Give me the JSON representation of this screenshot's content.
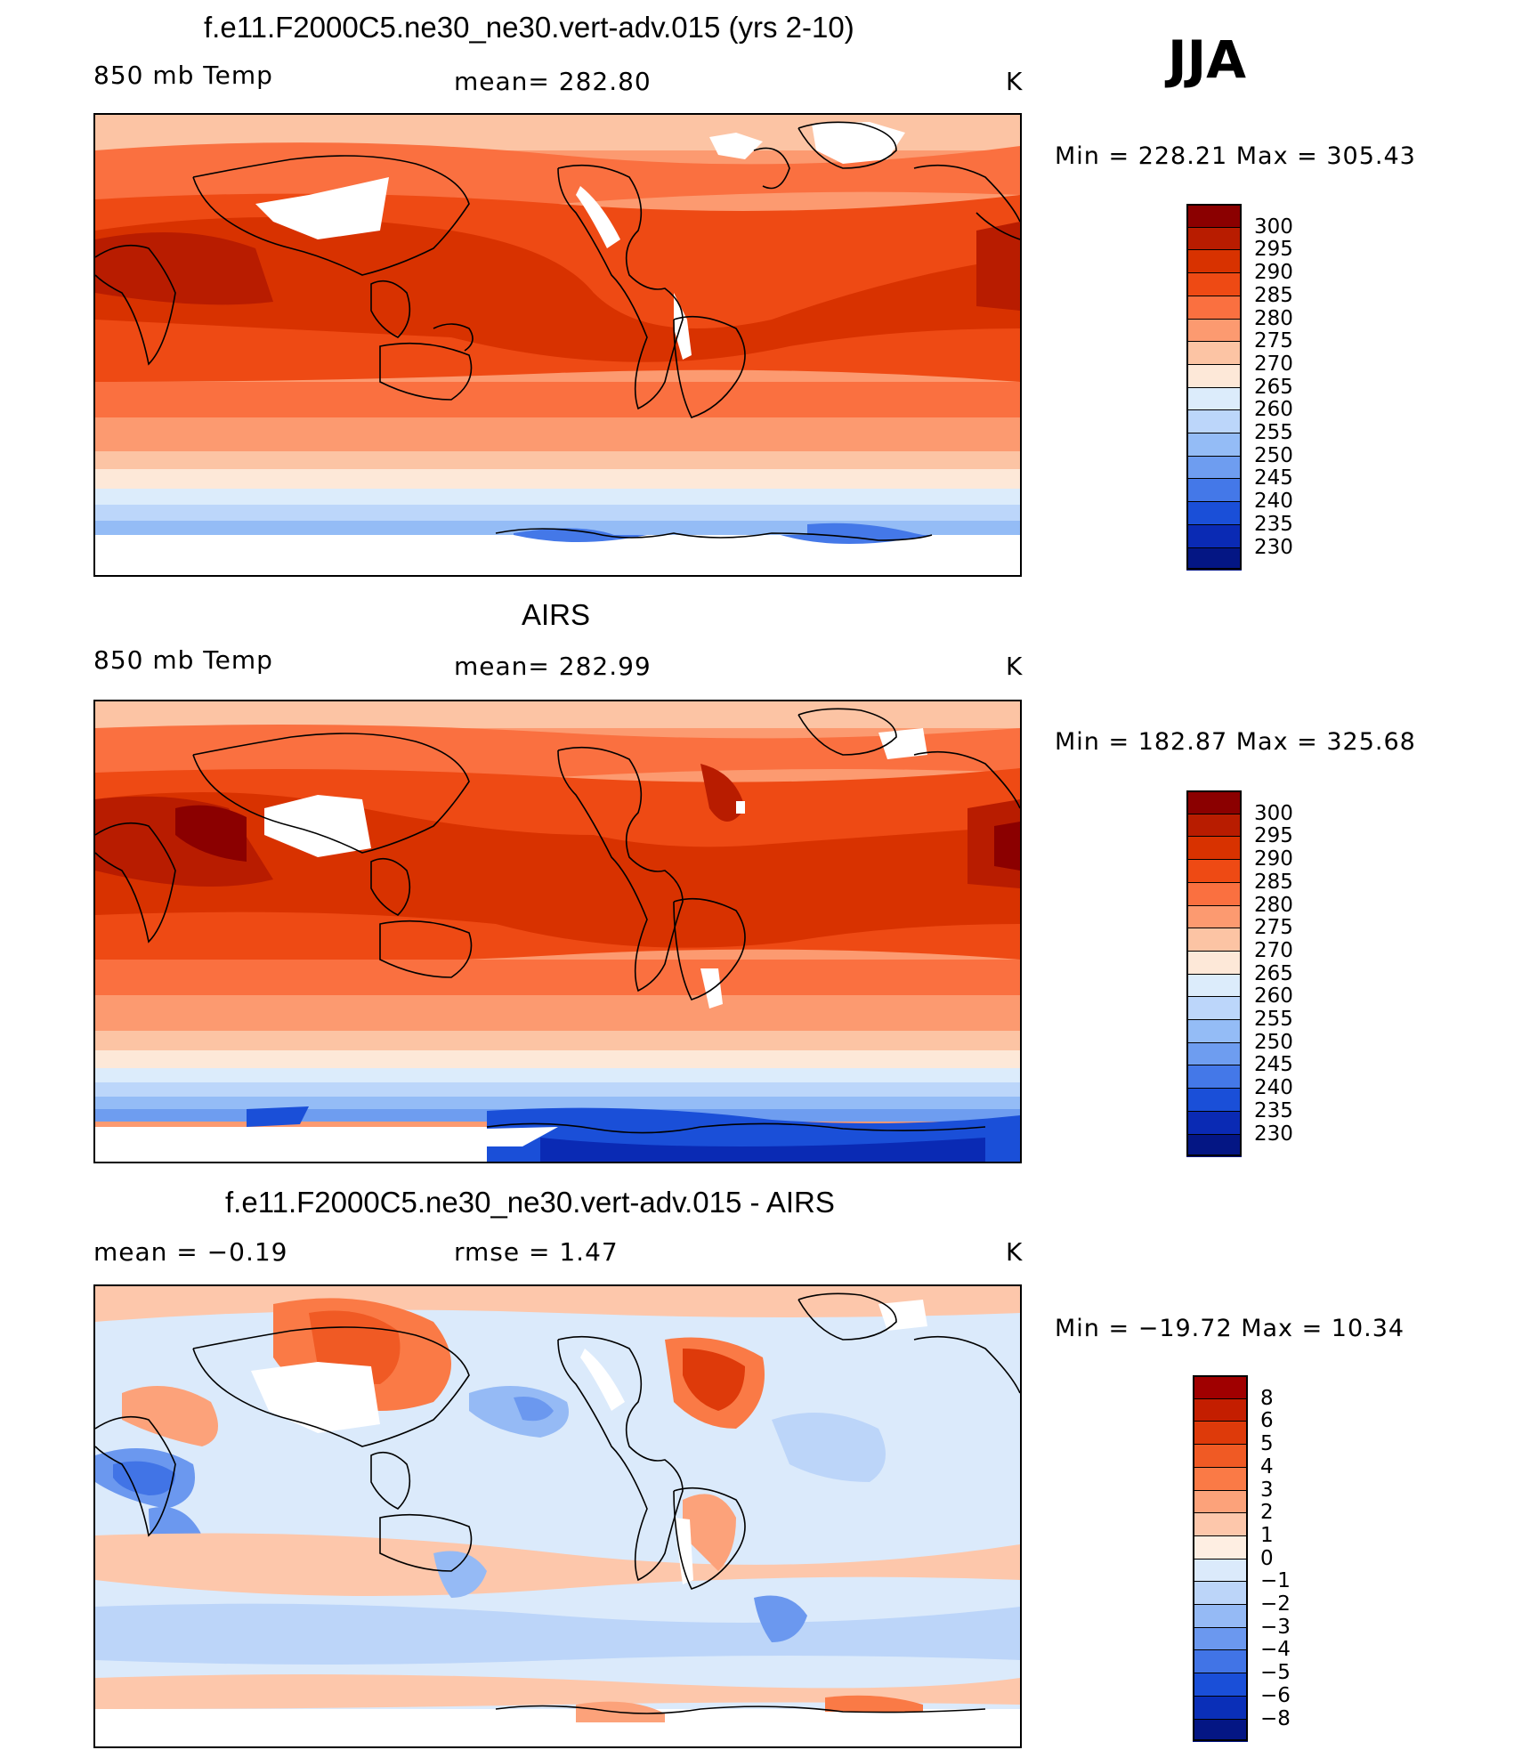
{
  "season": "JJA",
  "panels": [
    {
      "title": "f.e11.F2000C5.ne30_ne30.vert-adv.015 (yrs 2-10)",
      "left_label": "850 mb Temp",
      "center_label": "mean=  282.80",
      "units": "K",
      "minmax": "Min  =  228.21  Max  =  305.43"
    },
    {
      "title": "AIRS",
      "left_label": "850 mb Temp",
      "center_label": "mean=  282.99",
      "units": "K",
      "minmax": "Min  =  182.87  Max  =  325.68"
    },
    {
      "title": "f.e11.F2000C5.ne30_ne30.vert-adv.015 - AIRS",
      "left_label": "mean  =     −0.19",
      "center_label": "rmse  =     1.47",
      "units": "K",
      "minmax": "Min  =  −19.72  Max  =    10.34"
    }
  ],
  "colorbars": {
    "temperature": {
      "levels": [
        "300",
        "295",
        "290",
        "285",
        "280",
        "275",
        "270",
        "265",
        "260",
        "255",
        "250",
        "245",
        "240",
        "235",
        "230"
      ],
      "colors": [
        "#8b0000",
        "#b81c00",
        "#d83200",
        "#ee4a14",
        "#fa7040",
        "#fc9a70",
        "#fcc4a4",
        "#fde8d8",
        "#dcecfb",
        "#bcd6fa",
        "#94bcf6",
        "#6e9df0",
        "#4478e8",
        "#1a4fd8",
        "#0a2ab4",
        "#041684"
      ]
    },
    "difference": {
      "levels": [
        "8",
        "6",
        "5",
        "4",
        "3",
        "2",
        "1",
        "0",
        "−1",
        "−2",
        "−3",
        "−4",
        "−5",
        "−6",
        "−8"
      ],
      "colors": [
        "#a00000",
        "#c41e00",
        "#de3a0a",
        "#f05a24",
        "#fa7a46",
        "#fca27a",
        "#fdc7ab",
        "#feeee2",
        "#dbeafb",
        "#bcd5f9",
        "#95baf5",
        "#6b98ef",
        "#4174e6",
        "#1a4fd8",
        "#0a2fb8",
        "#041684"
      ]
    }
  }
}
